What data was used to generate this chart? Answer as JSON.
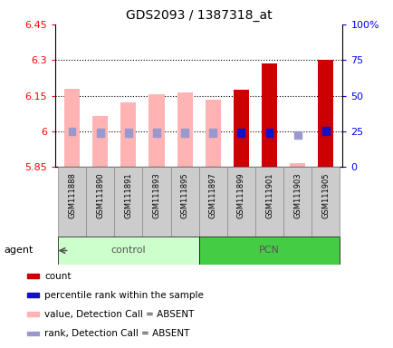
{
  "title": "GDS2093 / 1387318_at",
  "samples": [
    "GSM111888",
    "GSM111890",
    "GSM111891",
    "GSM111893",
    "GSM111895",
    "GSM111897",
    "GSM111899",
    "GSM111901",
    "GSM111903",
    "GSM111905"
  ],
  "groups": [
    "control",
    "control",
    "control",
    "control",
    "control",
    "PCN",
    "PCN",
    "PCN",
    "PCN",
    "PCN"
  ],
  "bar_values": [
    6.18,
    6.065,
    6.12,
    6.155,
    6.165,
    6.135,
    6.175,
    6.285,
    5.865,
    6.3
  ],
  "bar_colors": [
    "#ffb3b3",
    "#ffb3b3",
    "#ffb3b3",
    "#ffb3b3",
    "#ffb3b3",
    "#ffb3b3",
    "#cc0000",
    "#cc0000",
    "#ffb3b3",
    "#cc0000"
  ],
  "rank_values": [
    5.99,
    5.984,
    5.984,
    5.984,
    5.984,
    5.984,
    5.984,
    5.984,
    5.975,
    5.993
  ],
  "rank_colors": [
    "#9999cc",
    "#9999cc",
    "#9999cc",
    "#9999cc",
    "#9999cc",
    "#9999cc",
    "#1111cc",
    "#1111cc",
    "#9999cc",
    "#1111cc"
  ],
  "ymin": 5.85,
  "ymax": 6.45,
  "yticks": [
    5.85,
    6.0,
    6.15,
    6.3,
    6.45
  ],
  "ytick_labels": [
    "5.85",
    "6",
    "6.15",
    "6.3",
    "6.45"
  ],
  "y2min": 0,
  "y2max": 100,
  "y2ticks": [
    0,
    25,
    50,
    75,
    100
  ],
  "y2tick_labels": [
    "0",
    "25",
    "50",
    "75",
    "100%"
  ],
  "plot_bg": "#ffffff",
  "group_colors": {
    "control": "#ccffcc",
    "PCN": "#44cc44"
  },
  "group_label_color": "#555555",
  "grid_lines": [
    6.0,
    6.15,
    6.3
  ],
  "legend_items": [
    {
      "label": "count",
      "color": "#cc0000"
    },
    {
      "label": "percentile rank within the sample",
      "color": "#1111cc"
    },
    {
      "label": "value, Detection Call = ABSENT",
      "color": "#ffb3b3"
    },
    {
      "label": "rank, Detection Call = ABSENT",
      "color": "#9999cc"
    }
  ]
}
